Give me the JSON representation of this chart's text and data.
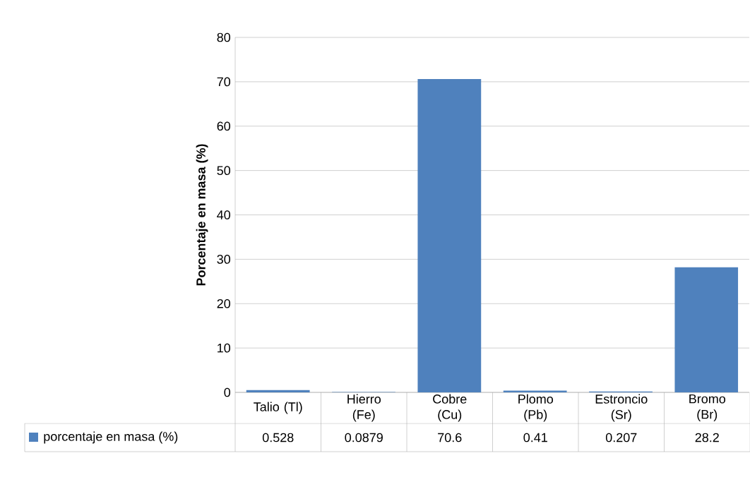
{
  "chart_data": {
    "type": "bar",
    "ylabel": "Porcentaje en masa (%)",
    "categories": [
      "Talio (Tl)",
      "Hierro (Fe)",
      "Cobre (Cu)",
      "Plomo (Pb)",
      "Estroncio (Sr)",
      "Bromo (Br)"
    ],
    "series": [
      {
        "name": "porcentaje en masa (%)",
        "color": "#4f81bd",
        "values": [
          0.528,
          0.0879,
          70.6,
          0.41,
          0.207,
          28.2
        ]
      }
    ],
    "ylim": [
      0,
      80
    ],
    "yticks": [
      0,
      10,
      20,
      30,
      40,
      50,
      60,
      70,
      80
    ],
    "grid": "y",
    "legend": "bottom",
    "data_labels": true
  }
}
